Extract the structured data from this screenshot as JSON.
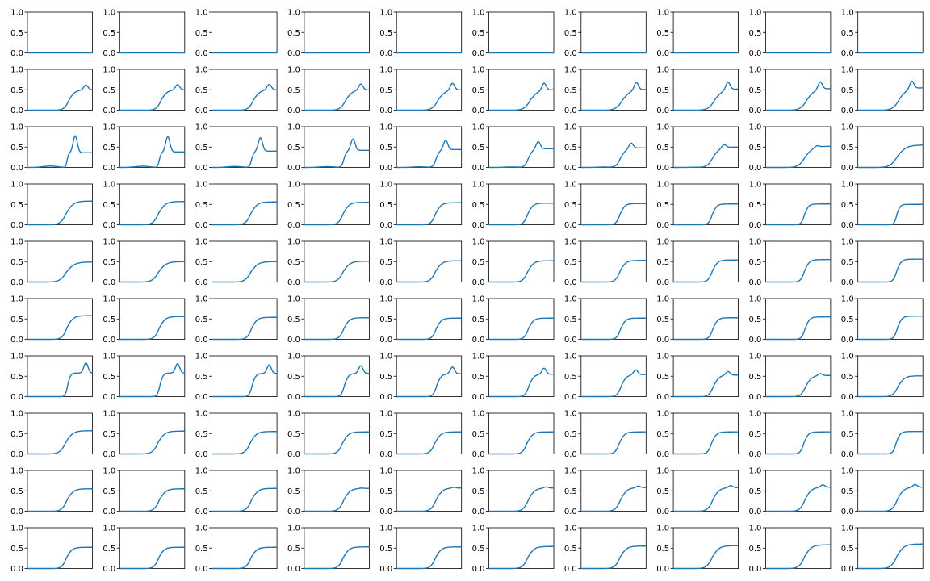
{
  "figure": {
    "rows": 10,
    "cols": 10,
    "line_color": "#1f77b4",
    "axis_color": "#000000",
    "background": "#ffffff"
  },
  "chart_data": {
    "type": "line",
    "description_source": "grid of 100 small line plots; values estimated from the axes",
    "x_domain": [
      0,
      1
    ],
    "ylim": [
      0,
      1
    ],
    "yticks": [
      0.0,
      0.5,
      1.0
    ],
    "ytick_labels": [
      "0.0",
      "0.5",
      "1.0"
    ],
    "xticks": [],
    "grid": false,
    "legend": "none",
    "panel_shape_key": [
      "k",
      "c",
      "w",
      "p",
      "a",
      "b"
    ],
    "panels_by_row": [
      [
        [
          0.0,
          0.57,
          0.72,
          0.045,
          0.0,
          0.0
        ],
        [
          0.0,
          0.56,
          0.67,
          0.045,
          0.0,
          0.0
        ],
        [
          0.0,
          0.56,
          0.62,
          0.045,
          0.0,
          0.0
        ],
        [
          0.0,
          0.55,
          0.58,
          0.045,
          0.0,
          0.0
        ],
        [
          0.0,
          0.54,
          0.54,
          0.045,
          0.0,
          0.0
        ],
        [
          0.0,
          0.54,
          0.5,
          0.045,
          0.0,
          0.0
        ],
        [
          0.0,
          0.53,
          0.47,
          0.045,
          0.0,
          0.0
        ],
        [
          0.0,
          0.52,
          0.45,
          0.045,
          0.0,
          0.0
        ],
        [
          0.0,
          0.52,
          0.44,
          0.045,
          0.0,
          0.0
        ],
        [
          0.0,
          0.51,
          0.43,
          0.045,
          0.0,
          0.0
        ]
      ],
      [
        [
          0.12,
          0.64,
          0.15,
          0.9,
          0.5,
          0.0
        ],
        [
          0.13,
          0.64,
          0.15,
          0.89,
          0.5,
          0.0
        ],
        [
          0.14,
          0.64,
          0.16,
          0.88,
          0.5,
          0.0
        ],
        [
          0.15,
          0.64,
          0.17,
          0.87,
          0.5,
          0.0
        ],
        [
          0.17,
          0.64,
          0.18,
          0.86,
          0.5,
          0.0
        ],
        [
          0.18,
          0.64,
          0.19,
          0.85,
          0.5,
          0.0
        ],
        [
          0.19,
          0.64,
          0.2,
          0.85,
          0.51,
          0.0
        ],
        [
          0.19,
          0.64,
          0.2,
          0.84,
          0.52,
          0.0
        ],
        [
          0.19,
          0.64,
          0.2,
          0.84,
          0.53,
          0.0
        ],
        [
          0.19,
          0.64,
          0.2,
          0.83,
          0.55,
          0.0
        ]
      ],
      [
        [
          0.42,
          0.61,
          0.04,
          0.735,
          0.36,
          0.035
        ],
        [
          0.38,
          0.61,
          0.05,
          0.74,
          0.38,
          0.03
        ],
        [
          0.33,
          0.61,
          0.06,
          0.745,
          0.4,
          0.025
        ],
        [
          0.28,
          0.61,
          0.07,
          0.75,
          0.42,
          0.02
        ],
        [
          0.23,
          0.61,
          0.09,
          0.755,
          0.44,
          0.015
        ],
        [
          0.18,
          0.61,
          0.11,
          0.76,
          0.46,
          0.012
        ],
        [
          0.13,
          0.61,
          0.14,
          0.77,
          0.48,
          0.01
        ],
        [
          0.08,
          0.61,
          0.17,
          0.78,
          0.5,
          0.005
        ],
        [
          0.04,
          0.61,
          0.2,
          0.79,
          0.52,
          0.0
        ],
        [
          0.0,
          0.61,
          0.22,
          0.8,
          0.55,
          0.0
        ]
      ],
      [
        [
          0.0,
          0.6,
          0.18,
          0.82,
          0.58,
          0.0
        ],
        [
          0.0,
          0.6,
          0.17,
          0.82,
          0.57,
          0.0
        ],
        [
          0.0,
          0.6,
          0.16,
          0.82,
          0.56,
          0.0
        ],
        [
          0.0,
          0.6,
          0.15,
          0.82,
          0.55,
          0.0
        ],
        [
          0.0,
          0.6,
          0.14,
          0.83,
          0.54,
          0.0
        ],
        [
          0.0,
          0.6,
          0.13,
          0.83,
          0.53,
          0.0
        ],
        [
          0.0,
          0.6,
          0.12,
          0.84,
          0.52,
          0.0
        ],
        [
          0.0,
          0.6,
          0.11,
          0.84,
          0.51,
          0.0
        ],
        [
          0.0,
          0.6,
          0.1,
          0.84,
          0.51,
          0.0
        ],
        [
          0.0,
          0.6,
          0.08,
          0.85,
          0.5,
          0.0
        ]
      ],
      [
        [
          0.0,
          0.6,
          0.2,
          0.82,
          0.49,
          0.0
        ],
        [
          0.0,
          0.6,
          0.19,
          0.83,
          0.5,
          0.0
        ],
        [
          0.0,
          0.6,
          0.18,
          0.83,
          0.5,
          0.0
        ],
        [
          0.0,
          0.6,
          0.17,
          0.84,
          0.51,
          0.0
        ],
        [
          0.0,
          0.6,
          0.16,
          0.84,
          0.52,
          0.0
        ],
        [
          0.0,
          0.6,
          0.15,
          0.84,
          0.52,
          0.0
        ],
        [
          0.0,
          0.6,
          0.14,
          0.85,
          0.53,
          0.0
        ],
        [
          0.0,
          0.6,
          0.13,
          0.85,
          0.54,
          0.0
        ],
        [
          0.0,
          0.6,
          0.12,
          0.85,
          0.55,
          0.0
        ],
        [
          0.0,
          0.6,
          0.11,
          0.85,
          0.56,
          0.0
        ]
      ],
      [
        [
          0.0,
          0.61,
          0.15,
          0.86,
          0.58,
          0.0
        ],
        [
          0.0,
          0.61,
          0.15,
          0.87,
          0.56,
          0.0
        ],
        [
          0.0,
          0.61,
          0.14,
          0.88,
          0.54,
          0.0
        ],
        [
          0.0,
          0.61,
          0.14,
          0.89,
          0.53,
          0.0
        ],
        [
          0.0,
          0.61,
          0.13,
          0.9,
          0.52,
          0.0
        ],
        [
          0.0,
          0.61,
          0.13,
          0.92,
          0.52,
          0.0
        ],
        [
          0.0,
          0.61,
          0.12,
          0.94,
          0.52,
          0.0
        ],
        [
          0.0,
          0.61,
          0.12,
          0.96,
          0.53,
          0.0
        ],
        [
          0.0,
          0.61,
          0.11,
          0.98,
          0.55,
          0.0
        ],
        [
          0.0,
          0.61,
          0.11,
          1.0,
          0.57,
          0.0
        ]
      ],
      [
        [
          0.25,
          0.62,
          0.07,
          0.9,
          0.58,
          0.0
        ],
        [
          0.23,
          0.62,
          0.08,
          0.89,
          0.58,
          0.0
        ],
        [
          0.21,
          0.62,
          0.09,
          0.88,
          0.57,
          0.0
        ],
        [
          0.19,
          0.62,
          0.1,
          0.87,
          0.57,
          0.0
        ],
        [
          0.17,
          0.62,
          0.11,
          0.86,
          0.56,
          0.0
        ],
        [
          0.15,
          0.62,
          0.12,
          0.85,
          0.55,
          0.0
        ],
        [
          0.12,
          0.62,
          0.13,
          0.84,
          0.54,
          0.0
        ],
        [
          0.09,
          0.62,
          0.14,
          0.84,
          0.53,
          0.0
        ],
        [
          0.05,
          0.62,
          0.15,
          0.84,
          0.52,
          0.0
        ],
        [
          0.0,
          0.62,
          0.16,
          0.84,
          0.51,
          0.0
        ]
      ],
      [
        [
          0.0,
          0.59,
          0.18,
          0.8,
          0.57,
          0.0
        ],
        [
          0.0,
          0.59,
          0.17,
          0.81,
          0.56,
          0.0
        ],
        [
          0.0,
          0.59,
          0.16,
          0.82,
          0.55,
          0.0
        ],
        [
          0.0,
          0.59,
          0.15,
          0.83,
          0.54,
          0.0
        ],
        [
          0.0,
          0.59,
          0.15,
          0.84,
          0.54,
          0.0
        ],
        [
          0.0,
          0.59,
          0.14,
          0.85,
          0.54,
          0.0
        ],
        [
          0.0,
          0.59,
          0.13,
          0.86,
          0.54,
          0.0
        ],
        [
          0.0,
          0.59,
          0.12,
          0.87,
          0.54,
          0.0
        ],
        [
          0.0,
          0.59,
          0.11,
          0.87,
          0.54,
          0.0
        ],
        [
          0.0,
          0.59,
          0.1,
          0.88,
          0.55,
          0.0
        ]
      ],
      [
        [
          0.0,
          0.61,
          0.16,
          0.88,
          0.55,
          0.0
        ],
        [
          0.0,
          0.61,
          0.16,
          0.88,
          0.55,
          0.0
        ],
        [
          0.0,
          0.61,
          0.16,
          0.88,
          0.56,
          0.0
        ],
        [
          0.01,
          0.61,
          0.16,
          0.88,
          0.56,
          0.0
        ],
        [
          0.02,
          0.61,
          0.16,
          0.88,
          0.57,
          0.0
        ],
        [
          0.03,
          0.61,
          0.16,
          0.88,
          0.57,
          0.0
        ],
        [
          0.04,
          0.61,
          0.16,
          0.88,
          0.58,
          0.0
        ],
        [
          0.05,
          0.61,
          0.16,
          0.88,
          0.58,
          0.0
        ],
        [
          0.06,
          0.61,
          0.16,
          0.88,
          0.59,
          0.0
        ],
        [
          0.07,
          0.61,
          0.16,
          0.88,
          0.59,
          0.0
        ]
      ],
      [
        [
          0.0,
          0.6,
          0.14,
          0.86,
          0.52,
          0.0
        ],
        [
          0.0,
          0.6,
          0.14,
          0.87,
          0.52,
          0.0
        ],
        [
          0.0,
          0.6,
          0.15,
          0.88,
          0.52,
          0.0
        ],
        [
          0.0,
          0.6,
          0.15,
          0.89,
          0.53,
          0.0
        ],
        [
          0.0,
          0.6,
          0.15,
          0.9,
          0.53,
          0.0
        ],
        [
          0.0,
          0.6,
          0.16,
          0.92,
          0.54,
          0.0
        ],
        [
          0.0,
          0.6,
          0.16,
          0.94,
          0.55,
          0.0
        ],
        [
          0.0,
          0.6,
          0.17,
          0.96,
          0.56,
          0.0
        ],
        [
          0.0,
          0.6,
          0.17,
          0.98,
          0.58,
          0.0
        ],
        [
          0.0,
          0.6,
          0.18,
          1.0,
          0.6,
          0.0
        ]
      ]
    ]
  }
}
